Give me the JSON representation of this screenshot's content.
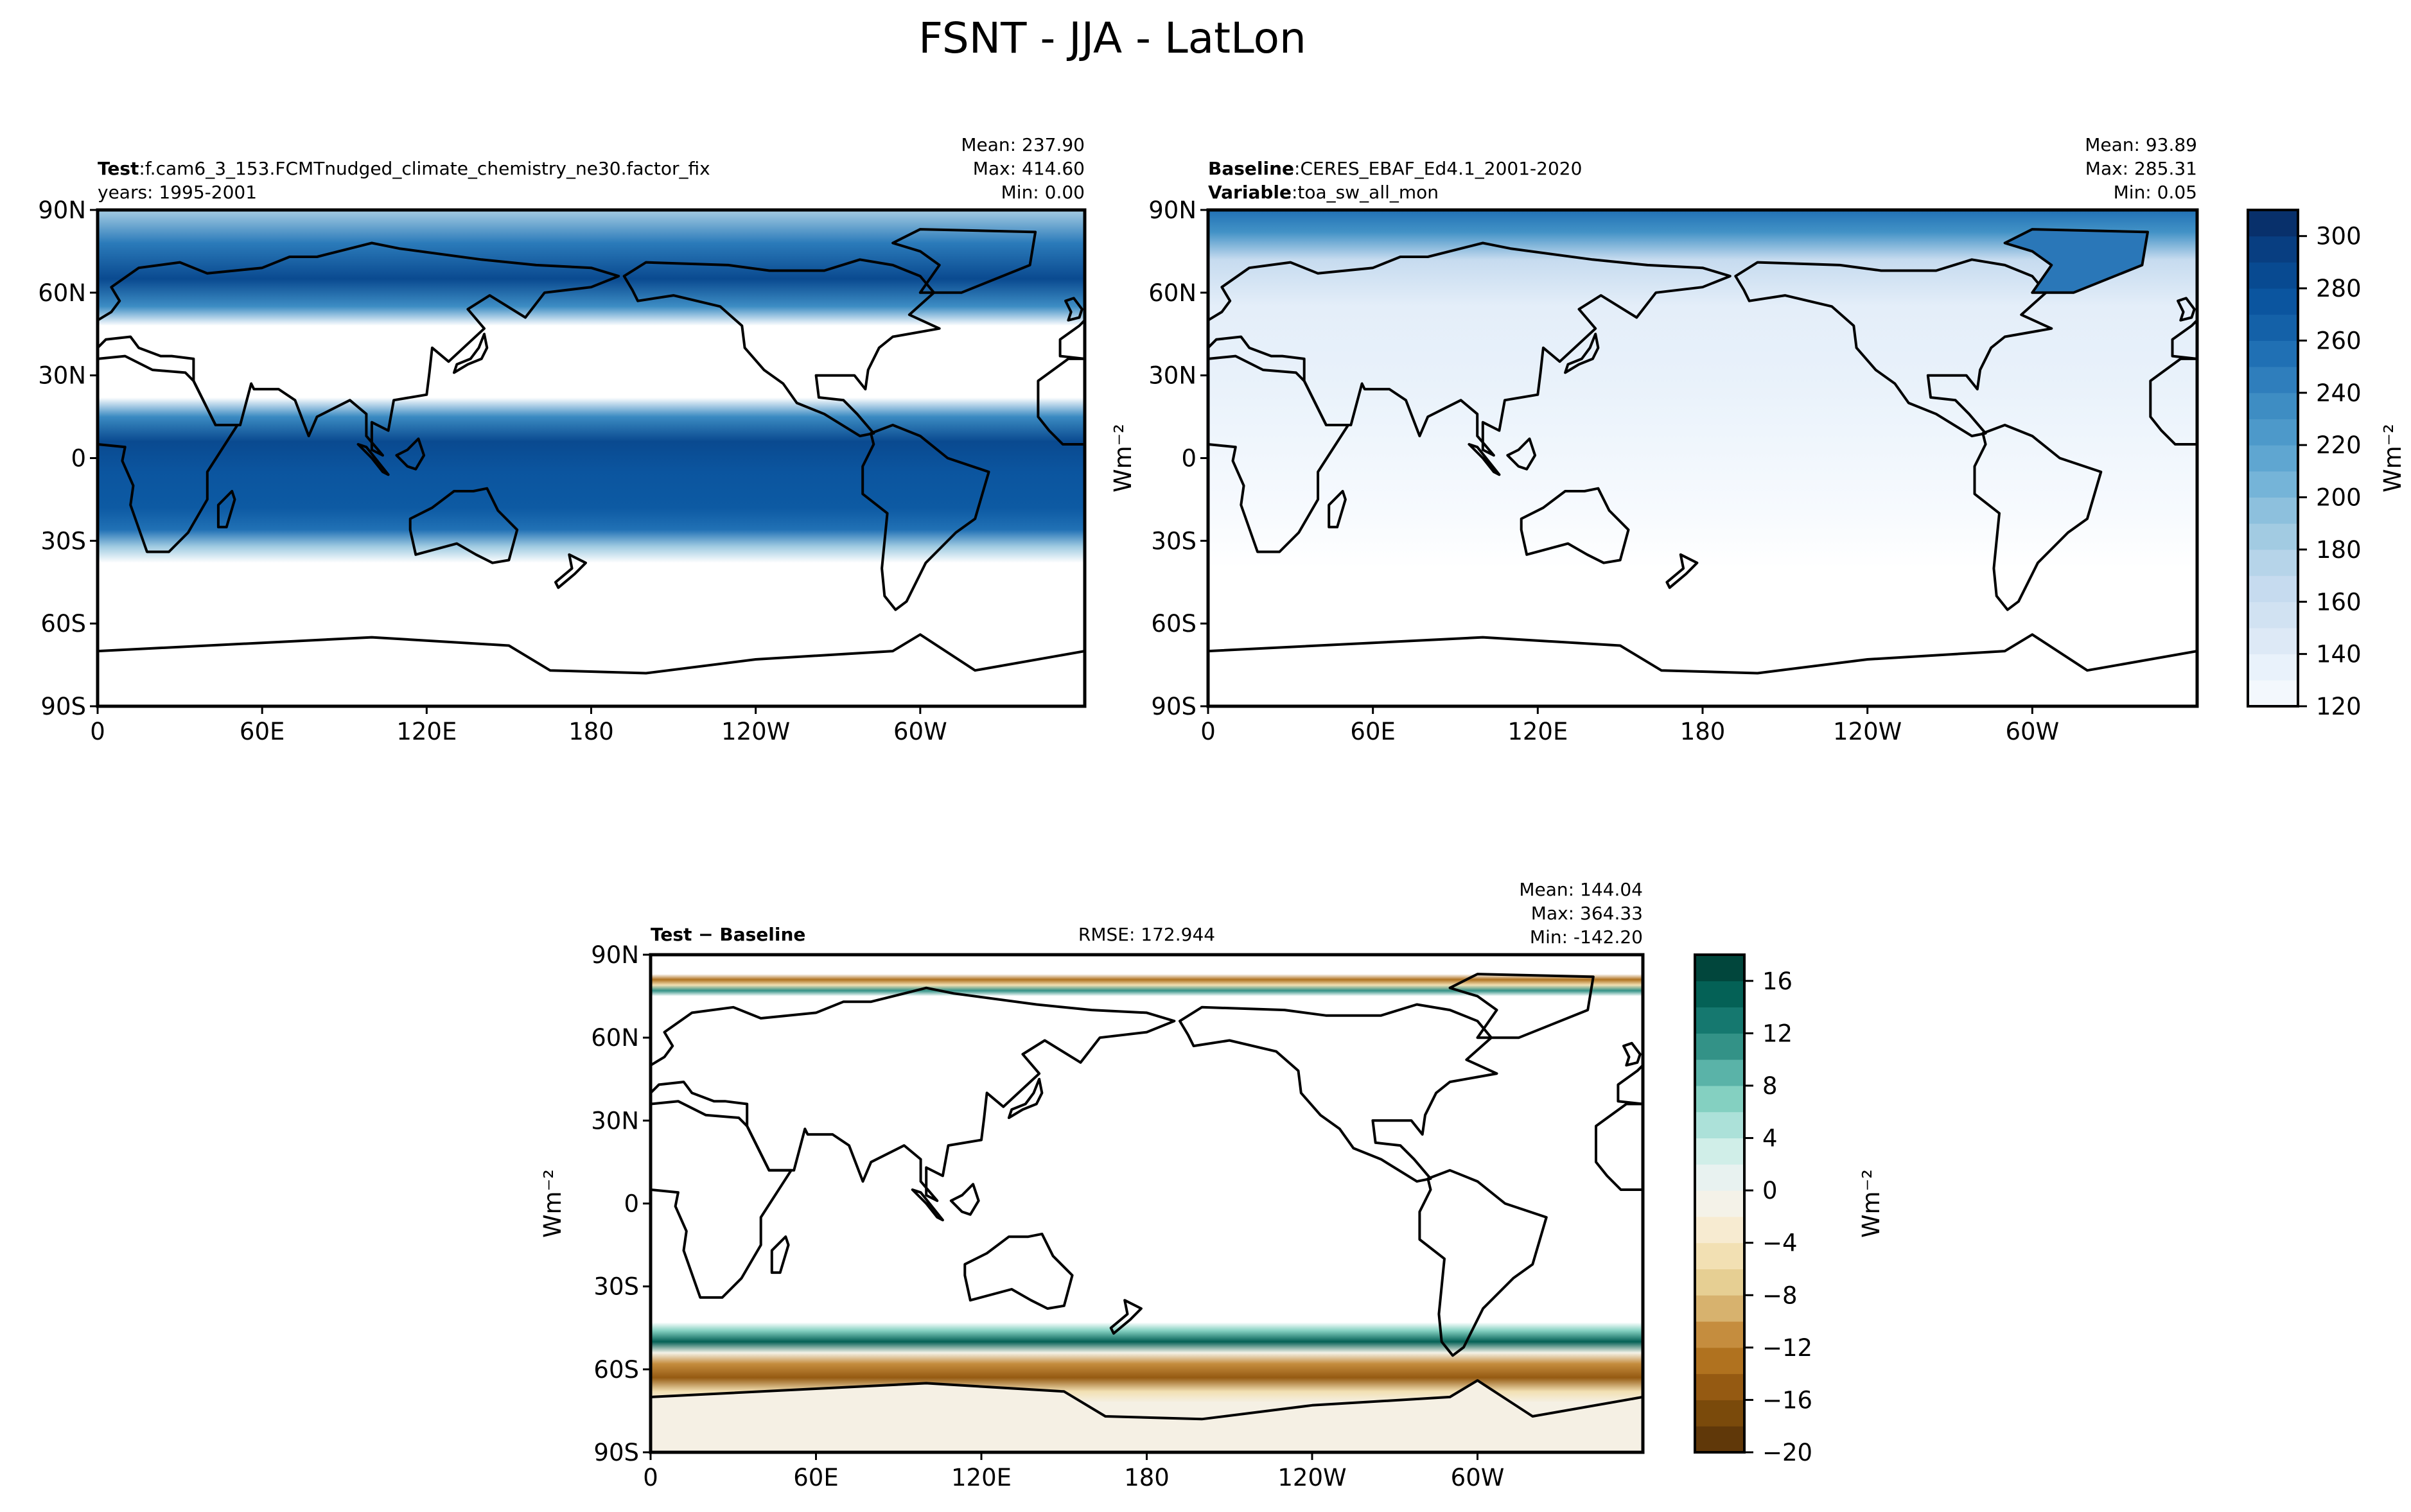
{
  "title": "FSNT - JJA - LatLon",
  "chart_data": [
    {
      "type": "heatmap",
      "panel": "test",
      "label_bold": "Test",
      "label_text": ":f.cam6_3_153.FCMTnudged_climate_chemistry_ne30.factor_fix",
      "line2": "years: 1995-2001",
      "stats": [
        "Mean: 237.90",
        "Max: 414.60",
        "Min:  0.00"
      ],
      "lat_ticks": [
        "90N",
        "60N",
        "30N",
        "0",
        "30S",
        "60S",
        "90S"
      ],
      "lon_ticks": [
        "0",
        "60E",
        "120E",
        "180",
        "120W",
        "60W"
      ],
      "xlim": [
        0,
        360
      ],
      "ylim": [
        -90,
        90
      ],
      "colormap": "Blues"
    },
    {
      "type": "heatmap",
      "panel": "baseline",
      "label_bold": "Baseline",
      "label_text": ":CERES_EBAF_Ed4.1_2001-2020",
      "line2_bold": "Variable",
      "line2_text": ":toa_sw_all_mon",
      "stats": [
        "Mean: 93.89",
        "Max: 285.31",
        "Min:  0.05"
      ],
      "lat_ticks": [
        "90N",
        "60N",
        "30N",
        "0",
        "30S",
        "60S",
        "90S"
      ],
      "lon_ticks": [
        "0",
        "60E",
        "120E",
        "180",
        "120W",
        "60W"
      ],
      "ylabel": "Wm⁻²",
      "xlim": [
        0,
        360
      ],
      "ylim": [
        -90,
        90
      ],
      "colormap": "Blues",
      "colorbar": {
        "ticks": [
          "300",
          "280",
          "260",
          "240",
          "220",
          "200",
          "180",
          "160",
          "140",
          "120"
        ],
        "range": [
          120,
          310
        ],
        "label": "Wm⁻²",
        "colors": [
          "#f3f8fd",
          "#e9f2fb",
          "#dde9f6",
          "#d1e2f2",
          "#c6dbef",
          "#b6d4e9",
          "#a2cbe2",
          "#8dc0dd",
          "#75b4d8",
          "#5fa6d1",
          "#4d99ca",
          "#3e8dc3",
          "#2f7ebc",
          "#2070b4",
          "#1461a8",
          "#0b559f",
          "#084a91",
          "#083e81",
          "#08306b"
        ]
      }
    },
    {
      "type": "heatmap",
      "panel": "difference",
      "label_bold": "Test − Baseline",
      "rmse": "RMSE: 172.944",
      "stats": [
        "Mean: 144.04",
        "Max: 364.33",
        "Min: -142.20"
      ],
      "lat_ticks": [
        "90N",
        "60N",
        "30N",
        "0",
        "30S",
        "60S",
        "90S"
      ],
      "lon_ticks": [
        "0",
        "60E",
        "120E",
        "180",
        "120W",
        "60W"
      ],
      "ylabel": "Wm⁻²",
      "xlim": [
        0,
        360
      ],
      "ylim": [
        -90,
        90
      ],
      "colormap": "BrBG",
      "colorbar": {
        "ticks": [
          "16",
          "12",
          "8",
          "4",
          "0",
          "−4",
          "−8",
          "−12",
          "−16",
          "−20"
        ],
        "range": [
          -20,
          18
        ],
        "label": "Wm⁻²",
        "colors": [
          "#603809",
          "#7a4a0b",
          "#955a12",
          "#b0721f",
          "#c58d3e",
          "#d7b26e",
          "#e6cf93",
          "#f2e0b3",
          "#f7ebd1",
          "#f4f2e8",
          "#e8f2f0",
          "#d0eee8",
          "#ace1d9",
          "#84d0c1",
          "#5ab3a8",
          "#339287",
          "#15786f",
          "#046156",
          "#01463c"
        ]
      }
    }
  ]
}
